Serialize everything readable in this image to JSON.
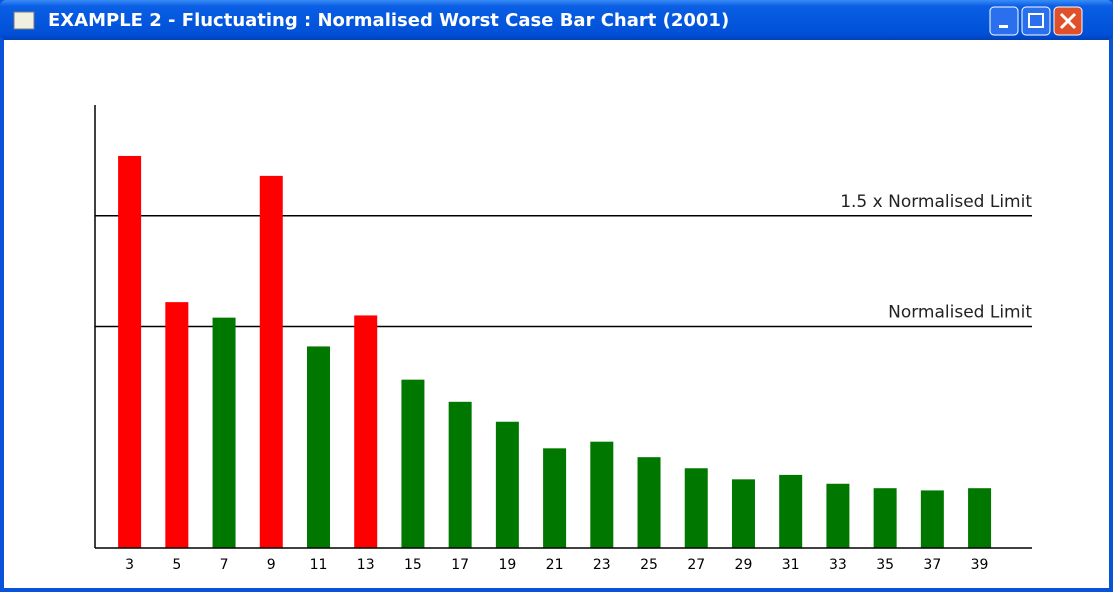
{
  "window": {
    "title": "EXAMPLE 2 - Fluctuating : Normalised Worst Case Bar Chart (2001)"
  },
  "chart_data": {
    "type": "bar",
    "categories": [
      3,
      5,
      7,
      9,
      11,
      13,
      15,
      17,
      19,
      21,
      23,
      25,
      27,
      29,
      31,
      33,
      35,
      37,
      39
    ],
    "values": [
      1.77,
      1.11,
      1.04,
      1.68,
      0.91,
      1.05,
      0.76,
      0.66,
      0.57,
      0.45,
      0.48,
      0.41,
      0.36,
      0.31,
      0.33,
      0.29,
      0.27,
      0.26,
      0.27
    ],
    "colors": [
      "#ff0000",
      "#ff0000",
      "#007800",
      "#ff0000",
      "#007800",
      "#ff0000",
      "#007800",
      "#007800",
      "#007800",
      "#007800",
      "#007800",
      "#007800",
      "#007800",
      "#007800",
      "#007800",
      "#007800",
      "#007800",
      "#007800",
      "#007800"
    ],
    "ylim": [
      0,
      2
    ],
    "reference_lines": [
      {
        "label": "1.5 x Normalised Limit",
        "value": 1.5
      },
      {
        "label": "Normalised Limit",
        "value": 1
      }
    ]
  }
}
